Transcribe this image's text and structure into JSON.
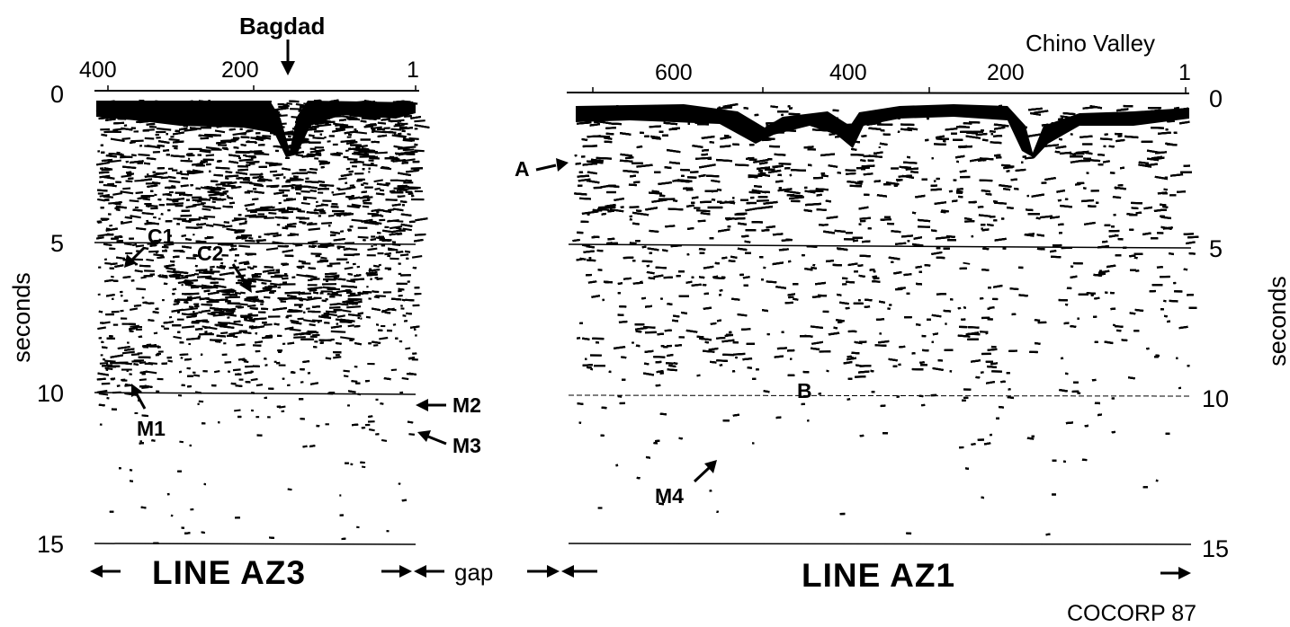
{
  "places": {
    "bagdad": "Bagdad",
    "chino_valley": "Chino Valley"
  },
  "az3": {
    "title": "LINE  AZ3",
    "trace_ticks": [
      "400",
      "200",
      "1"
    ],
    "time_ticks": [
      "0",
      "5",
      "10",
      "15"
    ],
    "axis_label": "seconds",
    "annotations": {
      "c1": "C1",
      "c2": "C2",
      "m1": "M1",
      "m2": "M2",
      "m3": "M3"
    }
  },
  "gap_label": "gap",
  "az1": {
    "title": "LINE AZ1",
    "trace_ticks": [
      "600",
      "400",
      "200",
      "1"
    ],
    "time_ticks": [
      "0",
      "5",
      "10",
      "15"
    ],
    "axis_label": "seconds",
    "annotations": {
      "a": "A",
      "b": "B",
      "m4": "M4"
    }
  },
  "credit": "COCORP 87",
  "colors": {
    "ink": "#000000",
    "paper": "#ffffff"
  }
}
